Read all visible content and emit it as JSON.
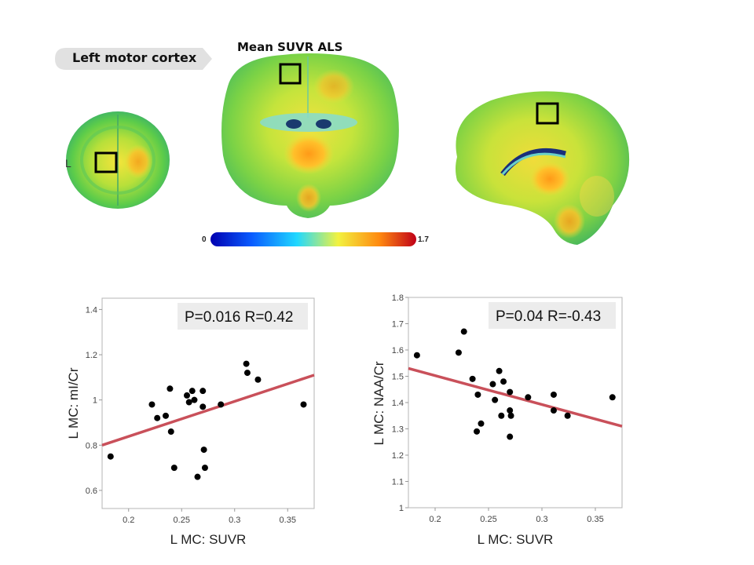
{
  "figure": {
    "region_label": "Left motor cortex",
    "brain_title": "Mean SUVR  ALS",
    "side_label": "L",
    "colorbar": {
      "min": "0",
      "max": "1.7",
      "colors": [
        "#0000b0",
        "#0a5cff",
        "#20d8ff",
        "#f2f240",
        "#ff8a10",
        "#c00018"
      ]
    }
  },
  "chart_data": [
    {
      "type": "scatter",
      "xlabel": "L MC: SUVR",
      "ylabel": "L MC: mI/Cr",
      "annotation": "P=0.016 R=0.42",
      "xlim": [
        0.175,
        0.375
      ],
      "ylim": [
        0.52,
        1.45
      ],
      "xticks": [
        0.2,
        0.25,
        0.3,
        0.35
      ],
      "xtick_labels": [
        "0.2",
        "0.25",
        "0.3",
        "0.35"
      ],
      "yticks": [
        0.6,
        0.8,
        1.0,
        1.2,
        1.4
      ],
      "ytick_labels": [
        "0.6",
        "0.8",
        "1",
        "1.2",
        "1.4"
      ],
      "points": [
        [
          0.183,
          0.75
        ],
        [
          0.222,
          0.98
        ],
        [
          0.227,
          0.92
        ],
        [
          0.235,
          0.93
        ],
        [
          0.239,
          1.05
        ],
        [
          0.24,
          0.86
        ],
        [
          0.243,
          0.7
        ],
        [
          0.255,
          1.02
        ],
        [
          0.257,
          0.99
        ],
        [
          0.26,
          1.04
        ],
        [
          0.262,
          1.0
        ],
        [
          0.265,
          0.66
        ],
        [
          0.27,
          1.04
        ],
        [
          0.27,
          0.97
        ],
        [
          0.271,
          0.78
        ],
        [
          0.272,
          0.7
        ],
        [
          0.287,
          0.98
        ],
        [
          0.311,
          1.16
        ],
        [
          0.312,
          1.12
        ],
        [
          0.322,
          1.09
        ],
        [
          0.365,
          0.98
        ]
      ],
      "fit_line": [
        [
          0.175,
          0.8
        ],
        [
          0.375,
          1.11
        ]
      ],
      "grid": false
    },
    {
      "type": "scatter",
      "xlabel": "L MC: SUVR",
      "ylabel": "L MC: NAA/Cr",
      "annotation": "P=0.04 R=-0.43",
      "xlim": [
        0.175,
        0.375
      ],
      "ylim": [
        1.0,
        1.8
      ],
      "xticks": [
        0.2,
        0.25,
        0.3,
        0.35
      ],
      "xtick_labels": [
        "0.2",
        "0.25",
        "0.3",
        "0.35"
      ],
      "yticks": [
        1.0,
        1.1,
        1.2,
        1.3,
        1.4,
        1.5,
        1.6,
        1.7,
        1.8
      ],
      "ytick_labels": [
        "1",
        "1.1",
        "1.2",
        "1.3",
        "1.4",
        "1.5",
        "1.6",
        "1.7",
        "1.8"
      ],
      "points": [
        [
          0.183,
          1.58
        ],
        [
          0.222,
          1.59
        ],
        [
          0.227,
          1.67
        ],
        [
          0.235,
          1.49
        ],
        [
          0.239,
          1.29
        ],
        [
          0.24,
          1.43
        ],
        [
          0.243,
          1.32
        ],
        [
          0.254,
          1.47
        ],
        [
          0.256,
          1.41
        ],
        [
          0.26,
          1.52
        ],
        [
          0.262,
          1.35
        ],
        [
          0.264,
          1.48
        ],
        [
          0.27,
          1.44
        ],
        [
          0.27,
          1.37
        ],
        [
          0.271,
          1.35
        ],
        [
          0.27,
          1.27
        ],
        [
          0.287,
          1.42
        ],
        [
          0.311,
          1.43
        ],
        [
          0.311,
          1.37
        ],
        [
          0.324,
          1.35
        ],
        [
          0.366,
          1.42
        ]
      ],
      "fit_line": [
        [
          0.175,
          1.53
        ],
        [
          0.375,
          1.31
        ]
      ],
      "grid": false
    }
  ]
}
